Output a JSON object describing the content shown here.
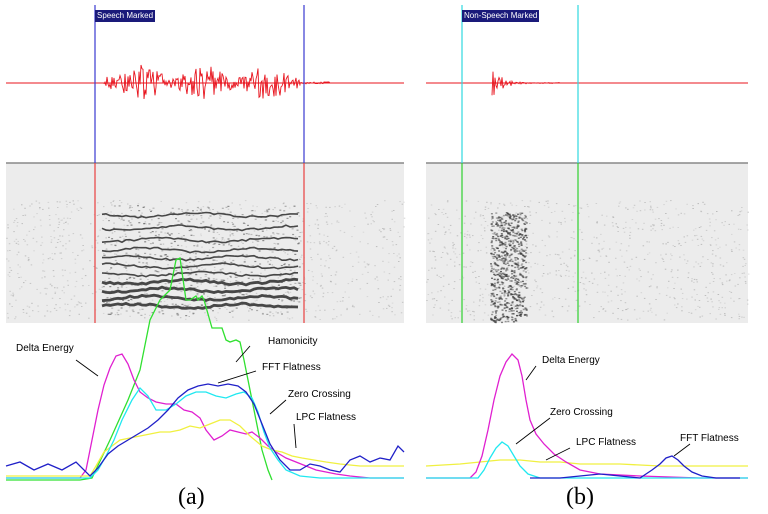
{
  "panel_a": {
    "marker_label": "Speech Marked",
    "labels": {
      "delta_energy": "Delta Energy",
      "harmonicity": "Hamonicity",
      "fft_flatness": "FFT Flatness",
      "zero_crossing": "Zero Crossing",
      "lpc_flatness": "LPC Flatness"
    },
    "caption": "(a)"
  },
  "panel_b": {
    "marker_label": "Non-Speech Marked",
    "labels": {
      "delta_energy": "Delta Energy",
      "zero_crossing": "Zero Crossing",
      "lpc_flatness": "LPC Flatness",
      "fft_flatness": "FFT Flatness"
    },
    "caption": "(b)"
  },
  "colors": {
    "waveform": "#e8141e",
    "speech_marker": "#3a3ad0",
    "nonspeech_marker": "#30d8e0",
    "delta_energy": "#e020d0",
    "harmonicity": "#30e030",
    "fft_flatness": "#2020c8",
    "zero_crossing": "#20e8f0",
    "lpc_flatness": "#f0f040"
  }
}
